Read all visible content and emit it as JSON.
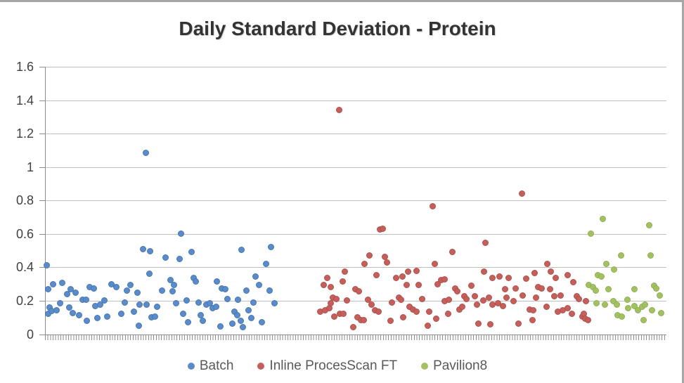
{
  "chart_data": {
    "type": "scatter",
    "title": "Daily Standard Deviation - Protein",
    "x_axis": {
      "labels_visible": false,
      "note": "dense unlabeled daily tick marks along bottom axis",
      "x_unit": "pixel position of point within image (no x labels shown)"
    },
    "y_axis": {
      "min": 0,
      "max": 1.6,
      "step": 0.2,
      "tick_labels": [
        "1.6",
        "1.4",
        "1.2",
        "1",
        "0.8",
        "0.6",
        "0.4",
        "0.2",
        "0"
      ],
      "tick_values": [
        1.6,
        1.4,
        1.2,
        1.0,
        0.8,
        0.6,
        0.4,
        0.2,
        0
      ]
    },
    "grid": true,
    "legend_position": "bottom",
    "series": [
      {
        "name": "Batch",
        "color": "#5b8bc9",
        "border_color": "#4576b5",
        "points": [
          [
            66,
            0.41
          ],
          [
            68,
            0.27
          ],
          [
            68,
            0.12
          ],
          [
            70,
            0.16
          ],
          [
            73,
            0.14
          ],
          [
            75,
            0.3
          ],
          [
            80,
            0.145
          ],
          [
            85,
            0.185
          ],
          [
            88,
            0.305
          ],
          [
            95,
            0.24
          ],
          [
            98,
            0.16
          ],
          [
            100,
            0.27
          ],
          [
            103,
            0.125
          ],
          [
            107,
            0.25
          ],
          [
            112,
            0.115
          ],
          [
            117,
            0.205
          ],
          [
            122,
            0.205
          ],
          [
            123,
            0.08
          ],
          [
            127,
            0.28
          ],
          [
            133,
            0.275
          ],
          [
            135,
            0.17
          ],
          [
            138,
            0.095
          ],
          [
            142,
            0.175
          ],
          [
            148,
            0.2
          ],
          [
            152,
            0.105
          ],
          [
            158,
            0.3
          ],
          [
            165,
            0.28
          ],
          [
            172,
            0.12
          ],
          [
            177,
            0.19
          ],
          [
            180,
            0.26
          ],
          [
            185,
            0.295
          ],
          [
            190,
            0.135
          ],
          [
            195,
            0.25
          ],
          [
            197,
            0.05
          ],
          [
            198,
            0.175
          ],
          [
            203,
            0.51
          ],
          [
            207,
            1.085
          ],
          [
            208,
            0.175
          ],
          [
            212,
            0.36
          ],
          [
            213,
            0.495
          ],
          [
            215,
            0.1
          ],
          [
            220,
            0.105
          ],
          [
            223,
            0.165
          ],
          [
            230,
            0.26
          ],
          [
            235,
            0.46
          ],
          [
            242,
            0.325
          ],
          [
            245,
            0.255
          ],
          [
            247,
            0.295
          ],
          [
            250,
            0.185
          ],
          [
            255,
            0.45
          ],
          [
            257,
            0.6
          ],
          [
            260,
            0.12
          ],
          [
            265,
            0.2
          ],
          [
            267,
            0.07
          ],
          [
            272,
            0.49
          ],
          [
            275,
            0.335
          ],
          [
            278,
            0.315
          ],
          [
            282,
            0.19
          ],
          [
            285,
            0.115
          ],
          [
            288,
            0.08
          ],
          [
            293,
            0.175
          ],
          [
            298,
            0.185
          ],
          [
            302,
            0.155
          ],
          [
            307,
            0.165
          ],
          [
            308,
            0.315
          ],
          [
            313,
            0.045
          ],
          [
            315,
            0.275
          ],
          [
            320,
            0.27
          ],
          [
            323,
            0.21
          ],
          [
            330,
            0.065
          ],
          [
            333,
            0.135
          ],
          [
            337,
            0.115
          ],
          [
            338,
            0.205
          ],
          [
            342,
            0.08
          ],
          [
            343,
            0.505
          ],
          [
            345,
            0.04
          ],
          [
            350,
            0.26
          ],
          [
            353,
            0.145
          ],
          [
            357,
            0.095
          ],
          [
            360,
            0.19
          ],
          [
            363,
            0.345
          ],
          [
            368,
            0.295
          ],
          [
            372,
            0.07
          ],
          [
            378,
            0.42
          ],
          [
            383,
            0.26
          ],
          [
            385,
            0.52
          ],
          [
            390,
            0.185
          ]
        ]
      },
      {
        "name": "Inline ProcesScan FT",
        "color": "#c4605c",
        "border_color": "#b44e4b",
        "points": [
          [
            455,
            0.135
          ],
          [
            460,
            0.295
          ],
          [
            462,
            0.145
          ],
          [
            465,
            0.335
          ],
          [
            468,
            0.155
          ],
          [
            470,
            0.28
          ],
          [
            470,
            0.185
          ],
          [
            473,
            0.22
          ],
          [
            475,
            0.105
          ],
          [
            478,
            0.21
          ],
          [
            482,
            1.34
          ],
          [
            483,
            0.12
          ],
          [
            487,
            0.315
          ],
          [
            488,
            0.122
          ],
          [
            490,
            0.375
          ],
          [
            493,
            0.2
          ],
          [
            502,
            0.04
          ],
          [
            505,
            0.27
          ],
          [
            508,
            0.1
          ],
          [
            510,
            0.255
          ],
          [
            513,
            0.085
          ],
          [
            517,
            0.085
          ],
          [
            518,
            0.42
          ],
          [
            523,
            0.205
          ],
          [
            525,
            0.47
          ],
          [
            528,
            0.175
          ],
          [
            533,
            0.145
          ],
          [
            535,
            0.355
          ],
          [
            538,
            0.135
          ],
          [
            540,
            0.625
          ],
          [
            544,
            0.632
          ],
          [
            547,
            0.463
          ],
          [
            550,
            0.43
          ],
          [
            555,
            0.08
          ],
          [
            557,
            0.19
          ],
          [
            563,
            0.335
          ],
          [
            567,
            0.22
          ],
          [
            570,
            0.205
          ],
          [
            572,
            0.345
          ],
          [
            573,
            0.1
          ],
          [
            578,
            0.295
          ],
          [
            580,
            0.375
          ],
          [
            582,
            0.165
          ],
          [
            587,
            0.147
          ],
          [
            592,
            0.38
          ],
          [
            592,
            0.135
          ],
          [
            595,
            0.295
          ],
          [
            600,
            0.21
          ],
          [
            608,
            0.05
          ],
          [
            610,
            0.135
          ],
          [
            615,
            0.765
          ],
          [
            618,
            0.42
          ],
          [
            620,
            0.093
          ],
          [
            622,
            0.3
          ],
          [
            627,
            0.325
          ],
          [
            632,
            0.33
          ],
          [
            632,
            0.198
          ],
          [
            637,
            0.122
          ],
          [
            638,
            0.205
          ],
          [
            643,
            0.49
          ],
          [
            647,
            0.275
          ],
          [
            650,
            0.255
          ],
          [
            653,
            0.147
          ],
          [
            657,
            0.164
          ],
          [
            660,
            0.225
          ],
          [
            663,
            0.21
          ],
          [
            670,
            0.29
          ],
          [
            675,
            0.225
          ],
          [
            678,
            0.177
          ],
          [
            680,
            0.063
          ],
          [
            687,
            0.2
          ],
          [
            688,
            0.375
          ],
          [
            690,
            0.545
          ],
          [
            695,
            0.22
          ],
          [
            697,
            0.059
          ],
          [
            700,
            0.337
          ],
          [
            700,
            0.177
          ],
          [
            708,
            0.185
          ],
          [
            710,
            0.345
          ],
          [
            715,
            0.168
          ],
          [
            718,
            0.27
          ],
          [
            720,
            0.219
          ],
          [
            723,
            0.337
          ],
          [
            730,
            0.198
          ],
          [
            733,
            0.274
          ],
          [
            737,
            0.063
          ],
          [
            742,
            0.84
          ],
          [
            743,
            0.232
          ],
          [
            748,
            0.332
          ],
          [
            753,
            0.147
          ],
          [
            757,
            0.084
          ],
          [
            758,
            0.143
          ],
          [
            760,
            0.366
          ],
          [
            762,
            0.219
          ],
          [
            765,
            0.282
          ],
          [
            770,
            0.274
          ],
          [
            777,
            0.164
          ],
          [
            778,
            0.42
          ],
          [
            782,
            0.27
          ],
          [
            783,
            0.375
          ],
          [
            788,
            0.227
          ],
          [
            790,
            0.337
          ],
          [
            793,
            0.135
          ],
          [
            797,
            0.232
          ],
          [
            800,
            0.143
          ],
          [
            807,
            0.354
          ],
          [
            807,
            0.156
          ],
          [
            813,
            0.122
          ],
          [
            815,
            0.312
          ],
          [
            820,
            0.227
          ],
          [
            823,
            0.21
          ],
          [
            828,
            0.105
          ],
          [
            830,
            0.122
          ],
          [
            832,
            0.093
          ],
          [
            833,
            0.198
          ],
          [
            836,
            0.085
          ]
        ]
      },
      {
        "name": "Pavilion8",
        "color": "#a3c163",
        "border_color": "#90b050",
        "points": [
          [
            837,
            0.295
          ],
          [
            840,
            0.6
          ],
          [
            843,
            0.282
          ],
          [
            847,
            0.26
          ],
          [
            848,
            0.185
          ],
          [
            850,
            0.354
          ],
          [
            855,
            0.345
          ],
          [
            857,
            0.69
          ],
          [
            860,
            0.177
          ],
          [
            862,
            0.42
          ],
          [
            865,
            0.27
          ],
          [
            872,
            0.198
          ],
          [
            873,
            0.387
          ],
          [
            877,
            0.177
          ],
          [
            878,
            0.114
          ],
          [
            883,
            0.47
          ],
          [
            884,
            0.105
          ],
          [
            892,
            0.206
          ],
          [
            893,
            0.156
          ],
          [
            902,
            0.27
          ],
          [
            902,
            0.168
          ],
          [
            907,
            0.143
          ],
          [
            913,
            0.164
          ],
          [
            915,
            0.084
          ],
          [
            917,
            0.177
          ],
          [
            923,
            0.653
          ],
          [
            925,
            0.47
          ],
          [
            927,
            0.143
          ],
          [
            930,
            0.29
          ],
          [
            933,
            0.274
          ],
          [
            938,
            0.232
          ],
          [
            940,
            0.126
          ]
        ]
      }
    ]
  },
  "colors": {
    "grid": "#bfbfbf",
    "axis": "#8c8c8c",
    "title_text": "#333333",
    "tick_text": "#404040",
    "legend_text": "#595959",
    "chart_border": "#a6a6a6"
  }
}
